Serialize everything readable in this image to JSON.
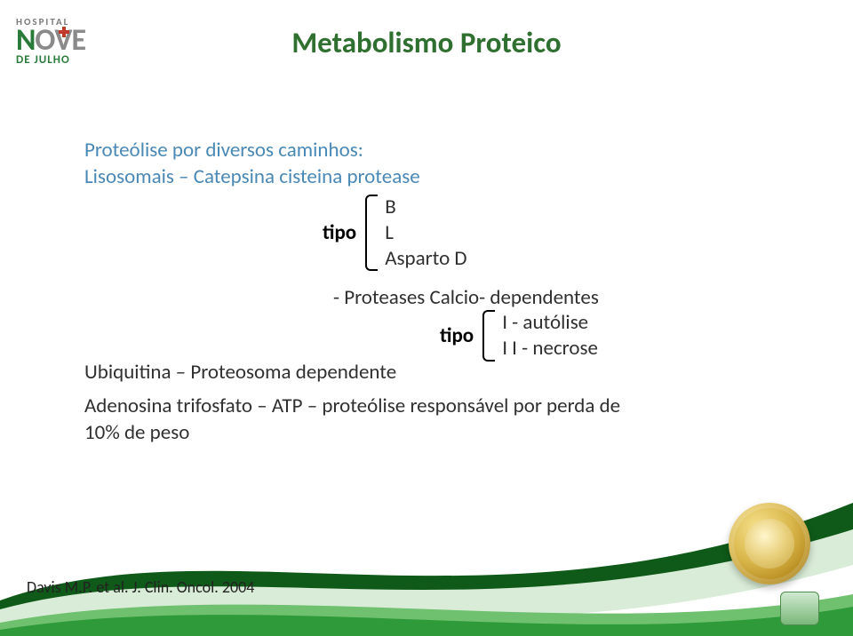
{
  "colors": {
    "title": "#2f6f2f",
    "subhead": "#4a88b5",
    "text": "#303030",
    "swoosh_dark": "#0f5a18",
    "swoosh_light": "#d9ecd7",
    "swoosh_bottom1": "#2f9a3a",
    "swoosh_bottom2": "#6fc06f"
  },
  "fontsizes": {
    "title": 33,
    "body": 23,
    "citation": 18
  },
  "logo": {
    "hospital": "HOSPITAL",
    "nove": "NOVE",
    "dejulho": "DE JULHO"
  },
  "title": "Metabolismo Proteico",
  "line1": "Proteólise por diversos caminhos:",
  "line2_prefix": "Lisosomais – Catepsina   cisteina protease",
  "bracket1": {
    "label": "tipo",
    "items": [
      "B",
      "L",
      "Asparto D"
    ]
  },
  "proteases_line": "- Proteases Calcio- dependentes",
  "bracket2": {
    "label": "tipo",
    "items": [
      "I - autólise",
      "I I - necrose"
    ]
  },
  "ubiq_line": "Ubiquitina – Proteosoma dependente",
  "adeno_line": "Adenosina trifosfato – ATP – proteólise responsável por perda de 10% de peso",
  "citation": "Davis M.P. et al. J. Clin. Oncol. 2004"
}
